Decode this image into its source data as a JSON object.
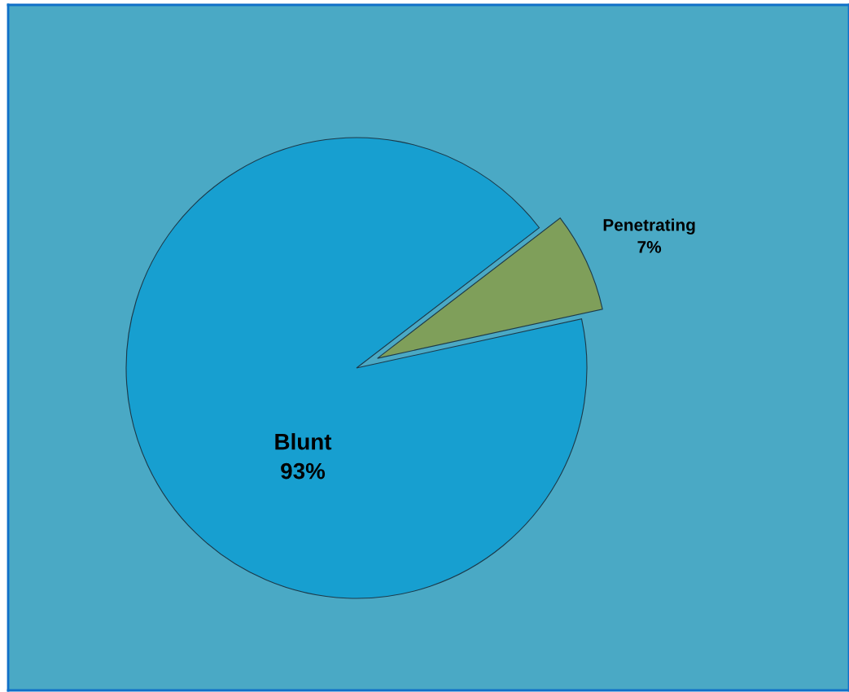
{
  "chart_data": {
    "type": "pie",
    "categories": [
      "Blunt",
      "Penetrating"
    ],
    "values": [
      93,
      7
    ],
    "colors": [
      "#179fd0",
      "#7f9f5a"
    ],
    "value_labels": [
      "93%",
      "7%"
    ]
  }
}
